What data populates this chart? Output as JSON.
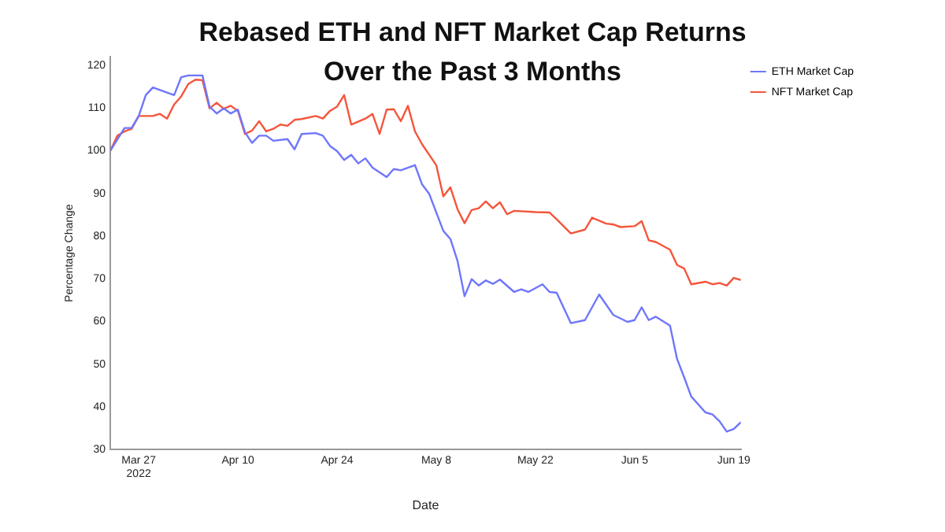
{
  "chart_data": {
    "type": "line",
    "title": "Rebased ETH and NFT Market Cap Returns Over the Past 3 Months",
    "xlabel": "Date",
    "ylabel": "Percentage Change",
    "xlim": [
      "2022-03-23",
      "2022-06-20"
    ],
    "xticks": [
      {
        "value": "2022-03-27",
        "label": "Mar 27\n2022"
      },
      {
        "value": "2022-04-10",
        "label": "Apr 10"
      },
      {
        "value": "2022-04-24",
        "label": "Apr 24"
      },
      {
        "value": "2022-05-08",
        "label": "May 8"
      },
      {
        "value": "2022-05-22",
        "label": "May 22"
      },
      {
        "value": "2022-06-05",
        "label": "Jun 5"
      },
      {
        "value": "2022-06-19",
        "label": "Jun 19"
      }
    ],
    "ylim": [
      30,
      122
    ],
    "yticks": [
      30,
      40,
      50,
      60,
      70,
      80,
      90,
      100,
      110,
      120
    ],
    "legend": "top right",
    "marker": "none",
    "line_style": "solid",
    "series": [
      {
        "name": "ETH Market Cap",
        "color": "#6f76fb",
        "x": [
          "2022-03-23",
          "2022-03-25",
          "2022-03-26",
          "2022-03-27",
          "2022-03-28",
          "2022-03-29",
          "2022-04-01",
          "2022-04-02",
          "2022-04-03",
          "2022-04-05",
          "2022-04-06",
          "2022-04-07",
          "2022-04-08",
          "2022-04-09",
          "2022-04-10",
          "2022-04-11",
          "2022-04-12",
          "2022-04-13",
          "2022-04-14",
          "2022-04-15",
          "2022-04-17",
          "2022-04-18",
          "2022-04-19",
          "2022-04-21",
          "2022-04-22",
          "2022-04-23",
          "2022-04-24",
          "2022-04-25",
          "2022-04-26",
          "2022-04-27",
          "2022-04-28",
          "2022-04-29",
          "2022-05-01",
          "2022-05-02",
          "2022-05-03",
          "2022-05-05",
          "2022-05-06",
          "2022-05-07",
          "2022-05-09",
          "2022-05-10",
          "2022-05-11",
          "2022-05-12",
          "2022-05-13",
          "2022-05-14",
          "2022-05-15",
          "2022-05-16",
          "2022-05-17",
          "2022-05-19",
          "2022-05-20",
          "2022-05-21",
          "2022-05-23",
          "2022-05-24",
          "2022-05-25",
          "2022-05-27",
          "2022-05-29",
          "2022-05-31",
          "2022-06-02",
          "2022-06-04",
          "2022-06-05",
          "2022-06-06",
          "2022-06-07",
          "2022-06-08",
          "2022-06-10",
          "2022-06-11",
          "2022-06-12",
          "2022-06-13",
          "2022-06-15",
          "2022-06-16",
          "2022-06-17",
          "2022-06-18",
          "2022-06-19",
          "2022-06-20"
        ],
        "values": [
          100,
          105.3,
          105.3,
          108.1,
          113,
          114.8,
          113,
          117.2,
          117.6,
          117.6,
          110.3,
          108.7,
          109.9,
          108.7,
          109.6,
          104.3,
          101.8,
          103.5,
          103.5,
          102.3,
          102.7,
          100.3,
          103.9,
          104.1,
          103.5,
          101.1,
          99.9,
          97.8,
          99,
          97,
          98.2,
          96,
          93.8,
          95.7,
          95.4,
          96.6,
          92.1,
          89.9,
          81.2,
          79.3,
          74.2,
          65.9,
          69.9,
          68.4,
          69.6,
          68.8,
          69.8,
          66.9,
          67.5,
          66.9,
          68.7,
          66.9,
          66.7,
          59.6,
          60.3,
          66.3,
          61.5,
          59.9,
          60.3,
          63.3,
          60.3,
          61.1,
          59,
          51.2,
          46.9,
          42.4,
          38.7,
          38.2,
          36.6,
          34.2,
          34.8,
          36.4
        ]
      },
      {
        "name": "NFT Market Cap",
        "color": "#f4553b",
        "x": [
          "2022-03-23",
          "2022-03-24",
          "2022-03-25",
          "2022-03-26",
          "2022-03-27",
          "2022-03-29",
          "2022-03-30",
          "2022-03-31",
          "2022-04-01",
          "2022-04-02",
          "2022-04-03",
          "2022-04-04",
          "2022-04-05",
          "2022-04-06",
          "2022-04-07",
          "2022-04-08",
          "2022-04-09",
          "2022-04-10",
          "2022-04-11",
          "2022-04-12",
          "2022-04-13",
          "2022-04-14",
          "2022-04-15",
          "2022-04-16",
          "2022-04-17",
          "2022-04-18",
          "2022-04-19",
          "2022-04-21",
          "2022-04-22",
          "2022-04-23",
          "2022-04-24",
          "2022-04-25",
          "2022-04-26",
          "2022-04-28",
          "2022-04-29",
          "2022-04-30",
          "2022-05-01",
          "2022-05-02",
          "2022-05-03",
          "2022-05-04",
          "2022-05-05",
          "2022-05-06",
          "2022-05-08",
          "2022-05-09",
          "2022-05-10",
          "2022-05-11",
          "2022-05-12",
          "2022-05-13",
          "2022-05-14",
          "2022-05-15",
          "2022-05-16",
          "2022-05-17",
          "2022-05-18",
          "2022-05-19",
          "2022-05-22",
          "2022-05-24",
          "2022-05-25",
          "2022-05-27",
          "2022-05-29",
          "2022-05-30",
          "2022-06-01",
          "2022-06-02",
          "2022-06-03",
          "2022-06-05",
          "2022-06-06",
          "2022-06-07",
          "2022-06-08",
          "2022-06-10",
          "2022-06-11",
          "2022-06-12",
          "2022-06-13",
          "2022-06-15",
          "2022-06-16",
          "2022-06-17",
          "2022-06-18",
          "2022-06-19",
          "2022-06-20"
        ],
        "values": [
          100,
          103.5,
          104.5,
          105.1,
          108.1,
          108.1,
          108.6,
          107.5,
          110.8,
          112.7,
          115.6,
          116.6,
          116.5,
          109.9,
          111.2,
          109.8,
          110.5,
          109.3,
          103.9,
          104.7,
          106.9,
          104.5,
          105.1,
          106.1,
          105.8,
          107.2,
          107.4,
          108.1,
          107.5,
          109.3,
          110.3,
          113,
          106.1,
          107.5,
          108.6,
          103.9,
          109.6,
          109.7,
          106.9,
          110.5,
          104.5,
          101.5,
          96.6,
          89.3,
          91.4,
          86.3,
          83,
          86.1,
          86.5,
          88.1,
          86.5,
          87.9,
          85.1,
          85.9,
          85.6,
          85.5,
          83.9,
          80.6,
          81.5,
          84.3,
          82.9,
          82.7,
          82.1,
          82.3,
          83.5,
          79,
          78.6,
          76.8,
          73.2,
          72.4,
          68.7,
          69.3,
          68.7,
          69,
          68.4,
          70.2,
          69.7
        ]
      }
    ]
  }
}
